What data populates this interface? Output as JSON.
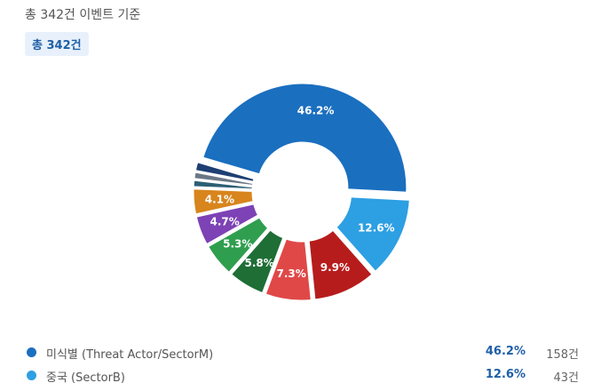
{
  "header": {
    "subtitle": "총 342건 이벤트 기준",
    "total_badge": "총 342건"
  },
  "chart_data": {
    "type": "pie",
    "donut": true,
    "total": 342,
    "slices": [
      {
        "value": 46.2,
        "label": "46.2%",
        "color": "#1a6fbf"
      },
      {
        "value": 1.5,
        "label": "",
        "color": "#1d3f73"
      },
      {
        "value": 1.2,
        "label": "",
        "color": "#6b7785"
      },
      {
        "value": 1.2,
        "label": "",
        "color": "#2c5f73"
      },
      {
        "value": 4.1,
        "label": "4.1%",
        "color": "#d8851d"
      },
      {
        "value": 4.7,
        "label": "4.7%",
        "color": "#7d42b5"
      },
      {
        "value": 5.3,
        "label": "5.3%",
        "color": "#2f9e4f"
      },
      {
        "value": 5.8,
        "label": "5.8%",
        "color": "#1e6e36"
      },
      {
        "value": 7.3,
        "label": "7.3%",
        "color": "#e04848"
      },
      {
        "value": 9.9,
        "label": "9.9%",
        "color": "#b71c1c"
      },
      {
        "value": 12.6,
        "label": "12.6%",
        "color": "#2d9fe3"
      }
    ]
  },
  "legend": [
    {
      "name": "미식별 (Threat Actor/SectorM)",
      "pct": "46.2%",
      "count": "158건",
      "color": "#1a6fbf"
    },
    {
      "name": "중국 (SectorB)",
      "pct": "12.6%",
      "count": "43건",
      "color": "#2d9fe3"
    }
  ]
}
